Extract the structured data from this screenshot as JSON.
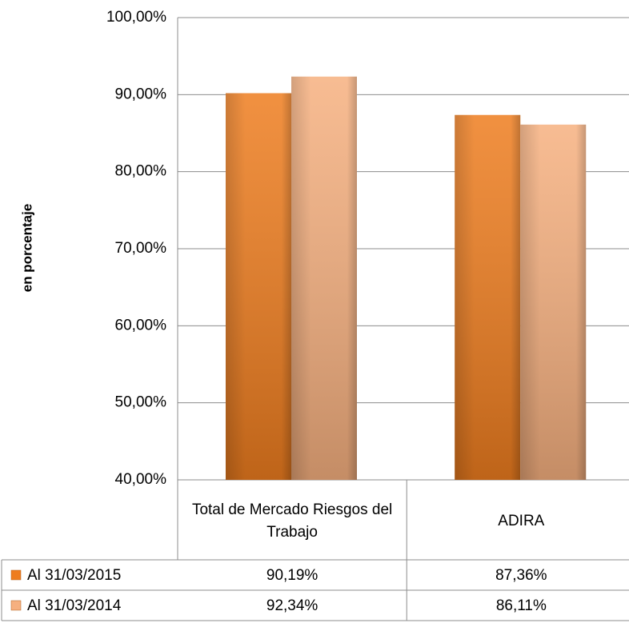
{
  "chart_data": {
    "type": "bar",
    "y_label": "en porcentaje",
    "categories": [
      "Total de Mercado Riesgos del Trabajo",
      "ADIRA"
    ],
    "series": [
      {
        "name": "Al 31/03/2015",
        "color": "#ee7d1f",
        "values": [
          90.19,
          87.36
        ],
        "value_labels": [
          "90,19%",
          "87,36%"
        ]
      },
      {
        "name": "Al 31/03/2014",
        "color": "#f6b07f",
        "values": [
          92.34,
          86.11
        ],
        "value_labels": [
          "92,34%",
          "86,11%"
        ]
      }
    ],
    "ylim": [
      40,
      100
    ],
    "yticks": [
      {
        "value": 40,
        "label": "40,00%"
      },
      {
        "value": 50,
        "label": "50,00%"
      },
      {
        "value": 60,
        "label": "60,00%"
      },
      {
        "value": 70,
        "label": "70,00%"
      },
      {
        "value": 80,
        "label": "80,00%"
      },
      {
        "value": 90,
        "label": "90,00%"
      },
      {
        "value": 100,
        "label": "100,00%"
      }
    ],
    "grid": true
  }
}
